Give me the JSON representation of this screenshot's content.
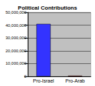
{
  "chart_data": {
    "type": "bar",
    "title": "Political Contributions",
    "categories": [
      "Pro-Israel",
      "Pro-Arab"
    ],
    "values": [
      41000000,
      500000
    ],
    "colors": [
      "#3333ff",
      "#ff0000"
    ],
    "ylim": [
      0,
      50000000
    ],
    "yticks": [
      {
        "value": 0,
        "label": "0"
      },
      {
        "value": 10000000,
        "label": "10,000,000"
      },
      {
        "value": 20000000,
        "label": "20,000,000"
      },
      {
        "value": 30000000,
        "label": "30,000,000"
      },
      {
        "value": 40000000,
        "label": "40,000,000"
      },
      {
        "value": 50000000,
        "label": "50,000,000"
      }
    ],
    "grid": true
  }
}
